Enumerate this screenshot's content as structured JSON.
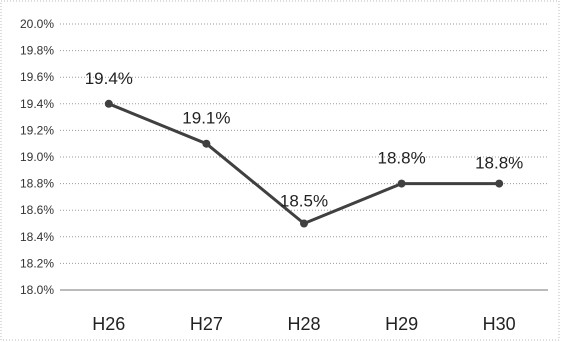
{
  "chart_data": {
    "type": "line",
    "categories": [
      "H26",
      "H27",
      "H28",
      "H29",
      "H30"
    ],
    "series": [
      {
        "values": [
          19.4,
          19.1,
          18.5,
          18.8,
          18.8
        ]
      }
    ],
    "data_labels": [
      "19.4%",
      "19.1%",
      "18.5%",
      "18.8%",
      "18.8%"
    ],
    "y_ticks": [
      "18.0%",
      "18.2%",
      "18.4%",
      "18.6%",
      "18.8%",
      "19.0%",
      "19.2%",
      "19.4%",
      "19.6%",
      "19.8%",
      "20.0%"
    ],
    "ylim": [
      18.0,
      20.0
    ],
    "title": "",
    "xlabel": "",
    "ylabel": "",
    "grid": true,
    "legend": "none",
    "colors": {
      "line": "#404040",
      "marker": "#404040"
    }
  }
}
